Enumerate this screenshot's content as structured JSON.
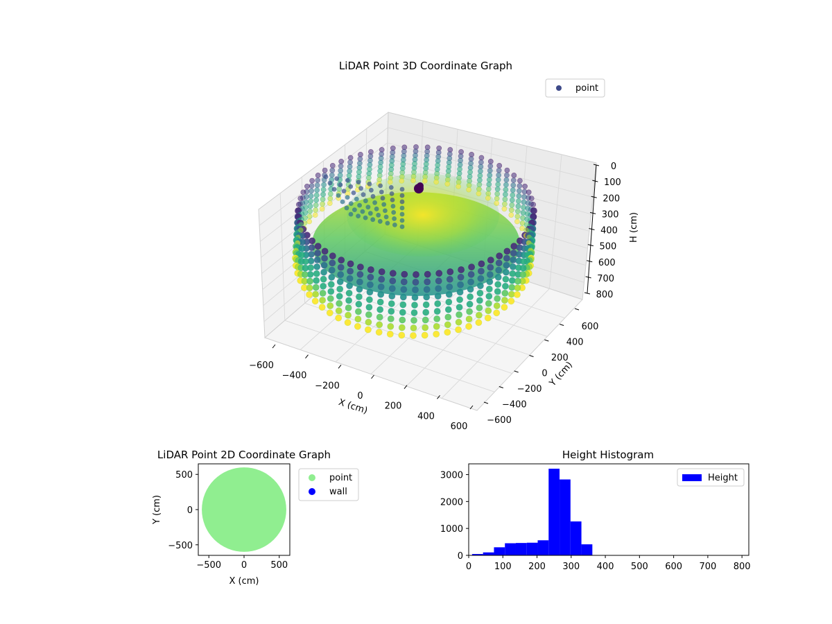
{
  "chart_data": [
    {
      "type": "scatter3d",
      "title": "LiDAR Point 3D Coordinate Graph",
      "xlabel": "X (cm)",
      "ylabel": "Y (cm)",
      "zlabel": "H (cm)",
      "xlim": [
        -600,
        600
      ],
      "ylim": [
        -600,
        600
      ],
      "zlim": [
        0,
        800
      ],
      "z_inverted": true,
      "grid": true,
      "xticks": [
        "−600",
        "−400",
        "−200",
        "0",
        "200",
        "400",
        "600"
      ],
      "yticks": [
        "−600",
        "−400",
        "−200",
        "0",
        "200",
        "400",
        "600"
      ],
      "zticks": [
        "0",
        "100",
        "200",
        "300",
        "400",
        "500",
        "600",
        "700",
        "800"
      ],
      "legend": {
        "entries": [
          "point"
        ],
        "placement": "top-right"
      },
      "colormap": "viridis",
      "series": [
        {
          "name": "point",
          "shape": "ring",
          "radius": 600,
          "height_range": [
            200,
            800
          ],
          "color": "#3e4a89"
        }
      ]
    },
    {
      "type": "scatter",
      "title": "LiDAR Point 2D Coordinate Graph",
      "xlabel": "X (cm)",
      "ylabel": "Y (cm)",
      "xlim": [
        -650,
        650
      ],
      "ylim": [
        -650,
        650
      ],
      "xticks": [
        "−500",
        "0",
        "500"
      ],
      "yticks": [
        "500",
        "0",
        "−500"
      ],
      "legend": {
        "entries": [
          "point",
          "wall"
        ],
        "placement": "outside-right"
      },
      "series": [
        {
          "name": "point",
          "color": "#90ee90",
          "shape": "filled-disk",
          "radius": 600
        },
        {
          "name": "wall",
          "color": "#0000ff",
          "points": []
        }
      ]
    },
    {
      "type": "histogram",
      "title": "Height Histogram",
      "xlim": [
        0,
        820
      ],
      "ylim": [
        0,
        3400
      ],
      "xticks": [
        "0",
        "100",
        "200",
        "300",
        "400",
        "500",
        "600",
        "700",
        "800"
      ],
      "yticks": [
        "0",
        "1000",
        "2000",
        "3000"
      ],
      "legend": {
        "entries": [
          "Height"
        ],
        "placement": "top-right"
      },
      "color": "#0000ff",
      "bins": [
        {
          "x0": 10,
          "x1": 42,
          "count": 50
        },
        {
          "x0": 42,
          "x1": 74,
          "count": 110
        },
        {
          "x0": 74,
          "x1": 106,
          "count": 300
        },
        {
          "x0": 106,
          "x1": 138,
          "count": 450
        },
        {
          "x0": 138,
          "x1": 170,
          "count": 460
        },
        {
          "x0": 170,
          "x1": 202,
          "count": 470
        },
        {
          "x0": 202,
          "x1": 234,
          "count": 560
        },
        {
          "x0": 234,
          "x1": 266,
          "count": 3220
        },
        {
          "x0": 266,
          "x1": 298,
          "count": 2820
        },
        {
          "x0": 298,
          "x1": 330,
          "count": 1260
        },
        {
          "x0": 330,
          "x1": 362,
          "count": 410
        }
      ]
    }
  ]
}
